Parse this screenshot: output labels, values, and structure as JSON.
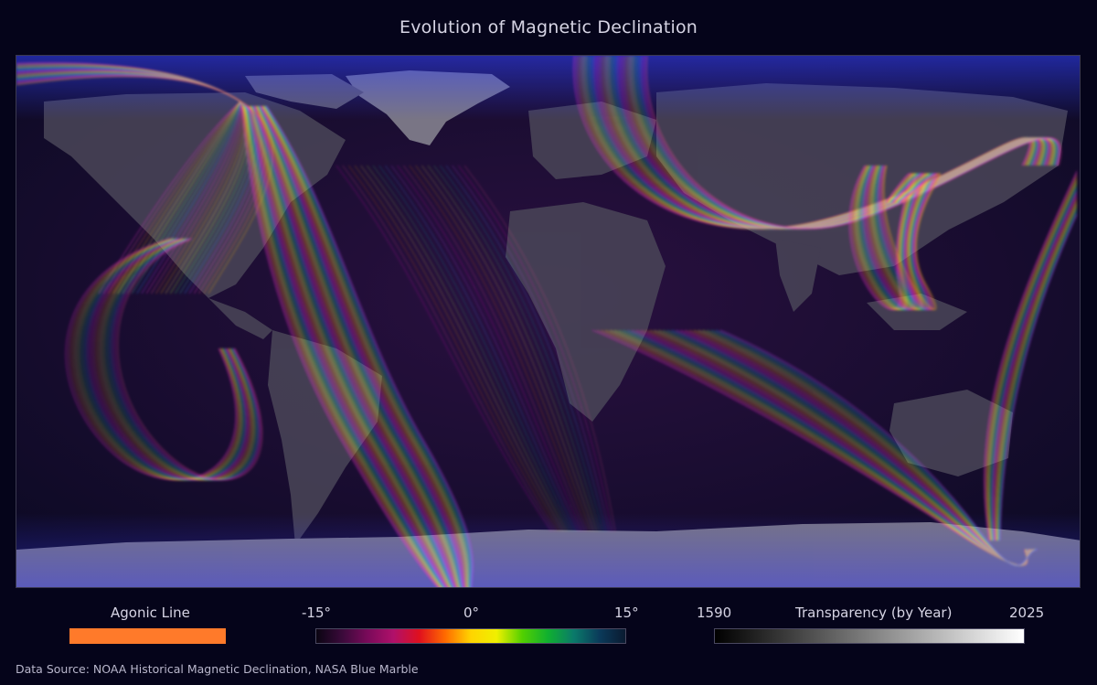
{
  "title": "Evolution of Magnetic Declination",
  "legend": {
    "agonic": {
      "label": "Agonic Line",
      "color": "#ff7a2a"
    },
    "declination": {
      "min_label": "-15°",
      "mid_label": "0°",
      "max_label": "15°",
      "colors": [
        "#0a0512",
        "#3a0a3a",
        "#7a0a5a",
        "#b0106a",
        "#e0101e",
        "#ff6a00",
        "#ffd400",
        "#f0f000",
        "#52d000",
        "#10b030",
        "#0a7a6a",
        "#0a3a5a",
        "#0a1a30"
      ]
    },
    "transparency": {
      "label": "Transparency (by Year)",
      "start_year": "1590",
      "end_year": "2025"
    }
  },
  "source": "Data Source: NOAA Historical Magnetic Declination, NASA Blue Marble"
}
